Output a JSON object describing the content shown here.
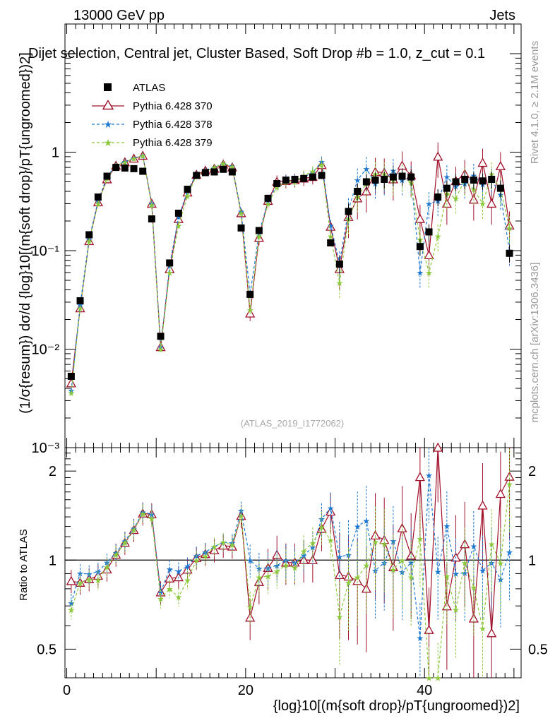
{
  "header": {
    "energy_label": "13000 GeV pp",
    "category_label": "Jets",
    "plot_title": "Dijet selection, Central jet, Cluster Based, Soft Drop #b = 1.0, z_cut = 0.1",
    "analysis_id": "(ATLAS_2019_I1772062)",
    "side_label_rivet": "Rivet 4.1.0, ≥ 2.1M events",
    "side_label_mcplots": "mcplots.cern.ch [arXiv:1306.3436]"
  },
  "axes": {
    "y_main_label": "(1/σ{resum}) dσ/d {log}10[(m{soft drop}/pT{ungroomed})2]",
    "y_ratio_label": "Ratio to ATLAS",
    "x_label": "{log}10[(m{soft drop}/pT{ungroomed})2]",
    "x_ticks": [
      "0",
      "20",
      "40"
    ],
    "y_main_ticks": [
      "10⁻³",
      "10⁻²",
      "10⁻¹",
      "1"
    ],
    "y_ratio_ticks": [
      "0.5",
      "1",
      "2"
    ]
  },
  "colors": {
    "atlas": "#000000",
    "py370": "#a0102a",
    "py378": "#1f78d0",
    "py379": "#8cc83c"
  },
  "chart_data": {
    "type": "scatter",
    "title": "Dijet selection, Central jet, Cluster Based, Soft Drop #b = 1.0, z_cut = 0.1",
    "xlabel": "{log}10[(m{soft drop}/pT{ungroomed})2]",
    "ylabel": "(1/σ{resum}) dσ/d {log}10[(m{soft drop}/pT{ungroomed})2]",
    "xlim": [
      -0.2,
      50.8
    ],
    "ylim": [
      0.001,
      20
    ],
    "yscale": "log",
    "ratio_ylim": [
      0.4,
      2.4
    ],
    "ratio_yscale": "log",
    "legend_position": "top-left",
    "x": [
      0.5,
      1.5,
      2.5,
      3.5,
      4.5,
      5.5,
      6.5,
      7.5,
      8.5,
      9.5,
      10.5,
      11.5,
      12.5,
      13.5,
      14.5,
      15.5,
      16.5,
      17.5,
      18.5,
      19.5,
      20.5,
      21.5,
      22.5,
      23.5,
      24.5,
      25.5,
      26.5,
      27.5,
      28.5,
      29.5,
      30.5,
      31.5,
      32.5,
      33.5,
      34.5,
      35.5,
      36.5,
      37.5,
      38.5,
      39.5,
      40.5,
      41.5,
      42.5,
      43.5,
      44.5,
      45.5,
      46.5,
      47.5,
      48.5,
      49.5
    ],
    "series": [
      {
        "name": "ATLAS",
        "marker": "filled-square",
        "values": [
          0.0053,
          0.031,
          0.145,
          0.35,
          0.57,
          0.7,
          0.69,
          0.68,
          0.64,
          0.21,
          0.0135,
          0.075,
          0.24,
          0.42,
          0.58,
          0.62,
          0.63,
          0.67,
          0.63,
          0.17,
          0.036,
          0.16,
          0.34,
          0.48,
          0.52,
          0.53,
          0.54,
          0.56,
          0.58,
          0.12,
          0.073,
          0.25,
          0.4,
          0.5,
          0.52,
          0.53,
          0.56,
          0.57,
          0.56,
          0.11,
          0.155,
          0.35,
          0.43,
          0.5,
          0.53,
          0.52,
          0.51,
          0.53,
          0.43,
          0.094
        ]
      },
      {
        "name": "Pythia 6.428 370",
        "marker": "open-triangle",
        "line": "solid",
        "values": [
          0.0045,
          0.026,
          0.125,
          0.31,
          0.53,
          0.73,
          0.79,
          0.86,
          0.92,
          0.3,
          0.0105,
          0.065,
          0.21,
          0.39,
          0.59,
          0.65,
          0.68,
          0.75,
          0.7,
          0.24,
          0.023,
          0.135,
          0.32,
          0.5,
          0.51,
          0.52,
          0.54,
          0.56,
          0.74,
          0.175,
          0.065,
          0.22,
          0.34,
          0.4,
          0.63,
          0.62,
          0.53,
          0.73,
          0.58,
          0.21,
          0.09,
          0.9,
          0.3,
          0.51,
          0.6,
          0.33,
          0.78,
          0.3,
          0.72,
          0.18
        ]
      },
      {
        "name": "Pythia 6.428 378",
        "marker": "star",
        "line": "dashed",
        "values": [
          0.0038,
          0.028,
          0.13,
          0.32,
          0.56,
          0.74,
          0.8,
          0.87,
          0.93,
          0.3,
          0.0105,
          0.07,
          0.22,
          0.4,
          0.6,
          0.66,
          0.7,
          0.77,
          0.72,
          0.25,
          0.036,
          0.15,
          0.32,
          0.46,
          0.52,
          0.52,
          0.56,
          0.62,
          0.8,
          0.18,
          0.075,
          0.26,
          0.52,
          0.68,
          0.48,
          0.52,
          0.65,
          0.52,
          0.55,
          0.06,
          0.3,
          0.32,
          0.56,
          0.45,
          0.48,
          0.58,
          0.47,
          0.52,
          0.37,
          0.1
        ]
      },
      {
        "name": "Pythia 6.428 379",
        "marker": "star",
        "line": "dashed",
        "values": [
          0.0036,
          0.026,
          0.125,
          0.3,
          0.54,
          0.73,
          0.79,
          0.86,
          0.92,
          0.29,
          0.01,
          0.06,
          0.18,
          0.36,
          0.58,
          0.64,
          0.7,
          0.77,
          0.71,
          0.24,
          0.025,
          0.14,
          0.3,
          0.44,
          0.5,
          0.5,
          0.58,
          0.64,
          0.75,
          0.14,
          0.047,
          0.21,
          0.35,
          0.48,
          0.6,
          0.6,
          0.52,
          0.57,
          0.49,
          0.13,
          0.06,
          0.14,
          0.38,
          0.34,
          0.52,
          0.42,
          0.3,
          0.6,
          0.42,
          0.17
        ]
      }
    ]
  }
}
